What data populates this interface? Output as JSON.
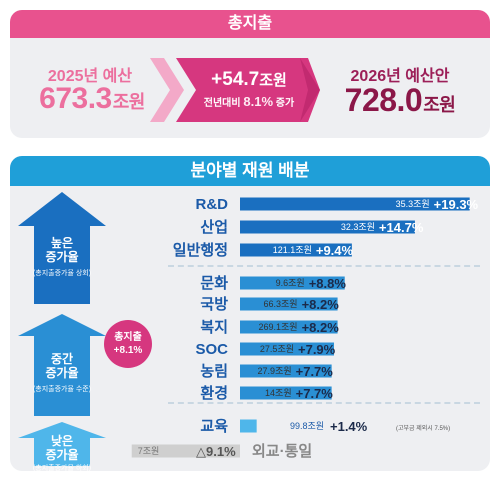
{
  "total": {
    "header": "총지출",
    "current_label": "2025년 예산",
    "current_value": "673.3",
    "unit": "조원",
    "increase_value": "+54.7",
    "increase_sub_prefix": "전년대비",
    "increase_rate": "8.1%",
    "increase_sub_suffix": "증가",
    "new_label": "2026년 예산안",
    "new_value": "728.0"
  },
  "allocation": {
    "header": "분야별 재원 배분",
    "groups": [
      {
        "title": "높은\n증가율",
        "sub": "(총지출증가율 상회)"
      },
      {
        "title": "중간\n증가율",
        "sub": "(총지출증가율 수준)"
      },
      {
        "title": "낮은\n증가율",
        "sub": "(총지출증가율 하회)"
      }
    ],
    "badge": "총지출\n+8.1%"
  },
  "colors": {
    "pink": "#e8528e",
    "magenta": "#d6377f",
    "dark_magenta": "#8b1748",
    "blue_header": "#1f9fd8",
    "bar_high": "#1a6fc0",
    "bar_mid": "#2a8fd4",
    "bar_low": "#4fb6ea",
    "bar_negative": "#cfcfcf",
    "label_blue": "#1b5aa8"
  },
  "chart_data": {
    "type": "bar",
    "orientation": "horizontal",
    "title": "분야별 재원 배분",
    "value_unit": "조원",
    "rate_unit": "%",
    "categories": [
      "R&D",
      "산업",
      "일반행정",
      "문화",
      "국방",
      "복지",
      "SOC",
      "농림",
      "환경",
      "교육",
      "외교·통일"
    ],
    "amounts": [
      35.3,
      32.3,
      121.1,
      9.6,
      66.3,
      269.1,
      27.5,
      27.9,
      14.0,
      99.8,
      7.0
    ],
    "growth_rates": [
      19.3,
      14.7,
      9.4,
      8.8,
      8.2,
      8.2,
      7.9,
      7.7,
      7.7,
      1.4,
      -9.1
    ],
    "rate_labels": [
      "+19.3%",
      "+14.7%",
      "+9.4%",
      "+8.8%",
      "+8.2%",
      "+8.2%",
      "+7.9%",
      "+7.7%",
      "+7.7%",
      "+1.4%",
      "△9.1%"
    ],
    "groups": [
      "high",
      "high",
      "high",
      "mid",
      "mid",
      "mid",
      "mid",
      "mid",
      "mid",
      "low",
      "low"
    ],
    "notes": [
      "",
      "",
      "",
      "",
      "",
      "",
      "",
      "",
      "",
      "(고부금 제외시 7.5%)",
      ""
    ],
    "xlim": [
      -10,
      20
    ]
  }
}
